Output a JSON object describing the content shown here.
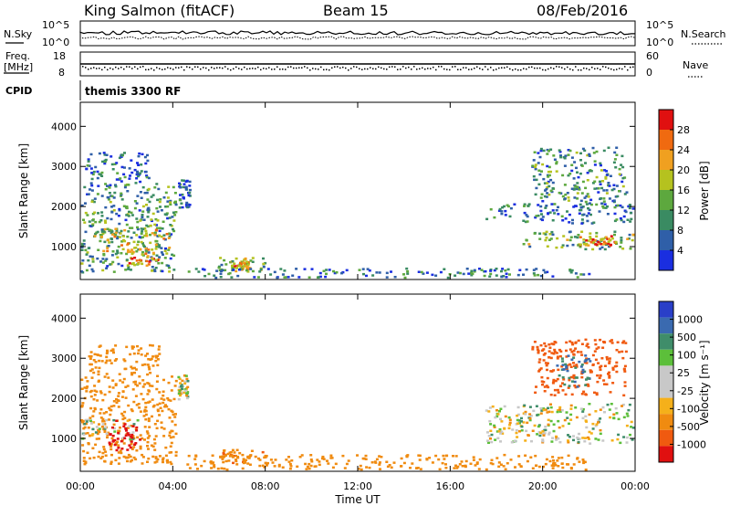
{
  "header": {
    "station": "King Salmon (fitACF)",
    "beam": "Beam 15",
    "date": "08/Feb/2016"
  },
  "top_panel": {
    "nsky_label": "N.Sky",
    "nsearch_label": "N.Search",
    "freq_label_1": "Freq.",
    "freq_label_2": "[MHz]",
    "nave_label": "Nave",
    "cpid_label": "CPID",
    "cpid_value": "themis 3300 RF",
    "nsky_ticks": [
      "10^5",
      "10^0"
    ],
    "nsearch_ticks": [
      "10^5",
      "10^0"
    ],
    "freq_ticks": [
      "18",
      "8"
    ],
    "nave_ticks": [
      "60",
      "0"
    ]
  },
  "colors": {
    "power_scale": [
      "#1a2ee0",
      "#2f5fa8",
      "#3a8b62",
      "#5da83e",
      "#b5c21f",
      "#f0a020",
      "#f06a10",
      "#e01010"
    ],
    "velocity_scale": [
      "#2a3fc8",
      "#3a6ab0",
      "#3f8d6a",
      "#5cbf3a",
      "#c8c8c8",
      "#c8c8c8",
      "#f5b01a",
      "#f08b10",
      "#f05a10",
      "#e01010"
    ]
  },
  "chart_data": [
    {
      "type": "heatmap",
      "name": "power",
      "xlabel": "",
      "ylabel": "Slant Range [km]",
      "x_ticks": [
        "00:00",
        "04:00",
        "08:00",
        "12:00",
        "16:00",
        "20:00",
        "00:00"
      ],
      "y_ticks": [
        "1000",
        "2000",
        "3000",
        "4000"
      ],
      "xlim_hours": [
        0,
        24
      ],
      "ylim_km": [
        180,
        4600
      ],
      "colorbar_label": "Power [dB]",
      "colorbar_ticks": [
        "28",
        "24",
        "20",
        "16",
        "12",
        "8",
        "4"
      ],
      "colorbar_range": [
        0,
        30
      ],
      "regions": [
        {
          "t0": 0.0,
          "t1": 4.1,
          "r0": 380,
          "r1": 2600,
          "level": 10
        },
        {
          "t0": 0.2,
          "t1": 3.0,
          "r0": 2500,
          "r1": 3400,
          "level": 6
        },
        {
          "t0": 0.5,
          "t1": 3.8,
          "r0": 900,
          "r1": 1500,
          "level": 17
        },
        {
          "t0": 2.0,
          "t1": 3.4,
          "r0": 550,
          "r1": 1000,
          "level": 22
        },
        {
          "t0": 4.2,
          "t1": 4.7,
          "r0": 2000,
          "r1": 2700,
          "level": 5
        },
        {
          "t0": 5.9,
          "t1": 8.0,
          "r0": 400,
          "r1": 750,
          "level": 14
        },
        {
          "t0": 6.5,
          "t1": 7.3,
          "r0": 450,
          "r1": 650,
          "level": 20
        },
        {
          "t0": 4.5,
          "t1": 22.0,
          "r0": 190,
          "r1": 480,
          "level": 7
        },
        {
          "t0": 17.5,
          "t1": 24.0,
          "r0": 1600,
          "r1": 2100,
          "level": 7
        },
        {
          "t0": 19.5,
          "t1": 23.6,
          "r0": 2100,
          "r1": 3500,
          "level": 9
        },
        {
          "t0": 19.0,
          "t1": 24.0,
          "r0": 950,
          "r1": 1400,
          "level": 13
        },
        {
          "t0": 21.5,
          "t1": 23.2,
          "r0": 1050,
          "r1": 1300,
          "level": 22
        }
      ]
    },
    {
      "type": "heatmap",
      "name": "velocity",
      "xlabel": "Time UT",
      "ylabel": "Slant Range [km]",
      "x_ticks": [
        "00:00",
        "04:00",
        "08:00",
        "12:00",
        "16:00",
        "20:00",
        "00:00"
      ],
      "y_ticks": [
        "1000",
        "2000",
        "3000",
        "4000"
      ],
      "xlim_hours": [
        0,
        24
      ],
      "ylim_km": [
        180,
        4600
      ],
      "colorbar_label": "Velocity [m s⁻¹]",
      "colorbar_ticks": [
        "1000",
        "500",
        "100",
        "25",
        "-25",
        "-100",
        "-500",
        "-1000"
      ],
      "colorbar_range": [
        -1000,
        1000
      ],
      "regions": [
        {
          "t0": 0.0,
          "t1": 4.1,
          "r0": 380,
          "r1": 2600,
          "level": -150
        },
        {
          "t0": 0.0,
          "t1": 2.5,
          "r0": 1000,
          "r1": 1500,
          "level": 0
        },
        {
          "t0": 1.2,
          "t1": 2.6,
          "r0": 700,
          "r1": 1500,
          "level": -700
        },
        {
          "t0": 0.3,
          "t1": 3.4,
          "r0": 2600,
          "r1": 3400,
          "level": -200
        },
        {
          "t0": 4.2,
          "t1": 4.6,
          "r0": 2000,
          "r1": 2600,
          "level": 0
        },
        {
          "t0": 6.0,
          "t1": 8.0,
          "r0": 400,
          "r1": 750,
          "level": -250
        },
        {
          "t0": 4.5,
          "t1": 22.0,
          "r0": 190,
          "r1": 620,
          "level": -150
        },
        {
          "t0": 17.5,
          "t1": 24.0,
          "r0": 900,
          "r1": 1900,
          "level": 0
        },
        {
          "t0": 19.5,
          "t1": 23.6,
          "r0": 2100,
          "r1": 3500,
          "level": -500
        },
        {
          "t0": 20.5,
          "t1": 22.0,
          "r0": 2300,
          "r1": 3100,
          "level": 300
        }
      ]
    }
  ]
}
